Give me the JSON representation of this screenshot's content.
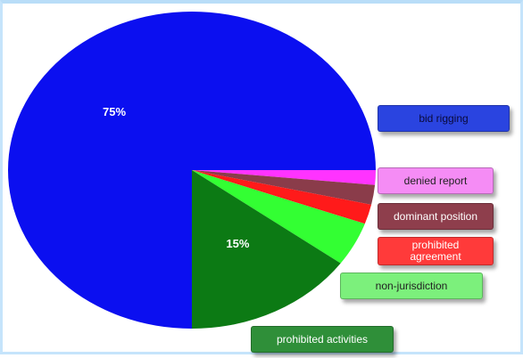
{
  "chart_data": {
    "type": "pie",
    "categories": [
      "bid rigging",
      "denied report",
      "dominant position",
      "prohibited agreement",
      "non-jurisdiction",
      "prohibited activities"
    ],
    "values": [
      75,
      1.5,
      2,
      2,
      4.5,
      15
    ],
    "colors": [
      "#0b0ff0",
      "#ff33ff",
      "#8a3c4a",
      "#ff1a1a",
      "#33ff33",
      "#0c7a14"
    ],
    "data_labels": [
      "75%",
      "",
      "",
      "",
      "",
      "15%"
    ],
    "legend_placement": "right"
  },
  "legend": [
    {
      "label": "bid rigging",
      "color": "#2a44e0",
      "text_color": "#0a0a3a"
    },
    {
      "label": "denied report",
      "color": "#f58cf5",
      "text_color": "#222222"
    },
    {
      "label": "dominant position",
      "color": "#8e3e4c",
      "text_color": "#ffffff"
    },
    {
      "label": "prohibited agreement",
      "color": "#ff3a3a",
      "text_color": "#ffffff"
    },
    {
      "label": "non-jurisdiction",
      "color": "#7cf07c",
      "text_color": "#222222"
    },
    {
      "label": "prohibited activities",
      "color": "#2f8f39",
      "text_color": "#ffffff"
    }
  ]
}
